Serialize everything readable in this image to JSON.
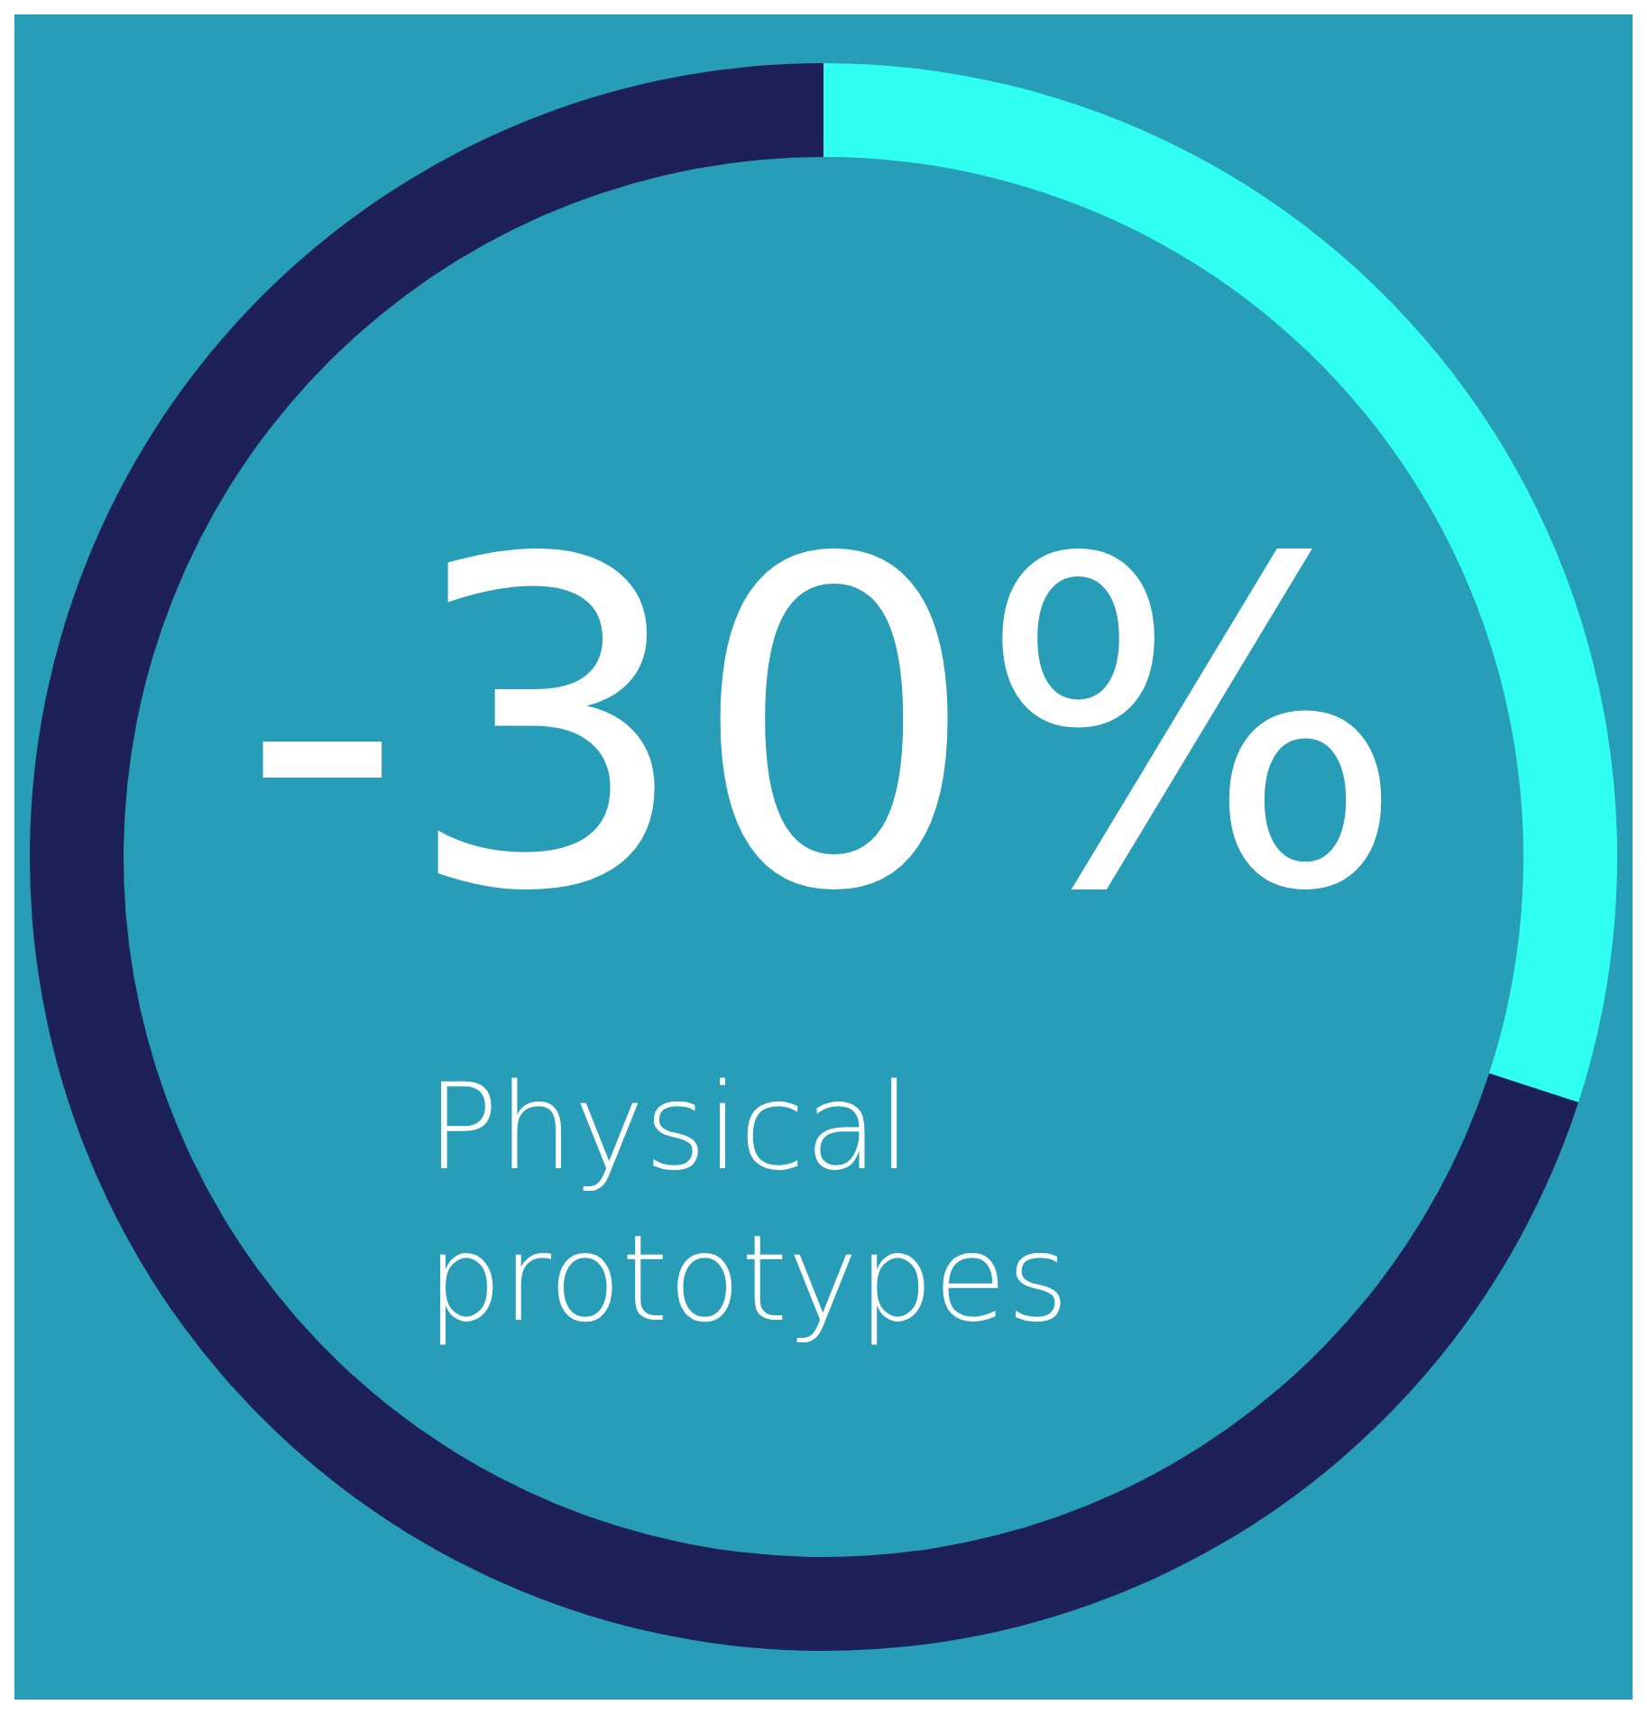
{
  "chart_data": {
    "type": "donut",
    "title": "Physical prototypes",
    "categories": [
      null,
      null
    ],
    "values": [
      30,
      70
    ],
    "colors": [
      "#2ffff0",
      "#1e2058"
    ],
    "annotations": [
      "-30%"
    ]
  }
}
